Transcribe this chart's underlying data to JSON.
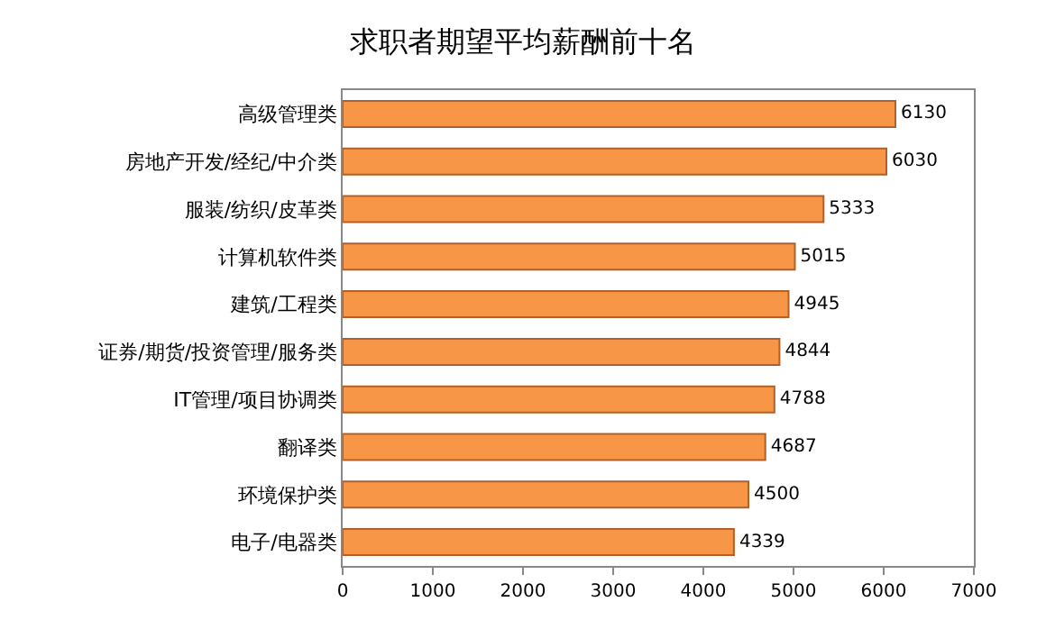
{
  "chart_data": {
    "type": "bar",
    "orientation": "horizontal",
    "title": "求职者期望平均薪酬前十名",
    "categories": [
      "高级管理类",
      "房地产开发/经纪/中介类",
      "服装/纺织/皮革类",
      "计算机软件类",
      "建筑/工程类",
      "证券/期货/投资管理/服务类",
      "IT管理/项目协调类",
      "翻译类",
      "环境保护类",
      "电子/电器类"
    ],
    "values": [
      6130,
      6030,
      5333,
      5015,
      4945,
      4844,
      4788,
      4687,
      4500,
      4339
    ],
    "color": "#f79646",
    "data_labels": true,
    "xlim": [
      0,
      7000
    ],
    "xticks": [
      0,
      1000,
      2000,
      3000,
      4000,
      5000,
      6000,
      7000
    ]
  }
}
